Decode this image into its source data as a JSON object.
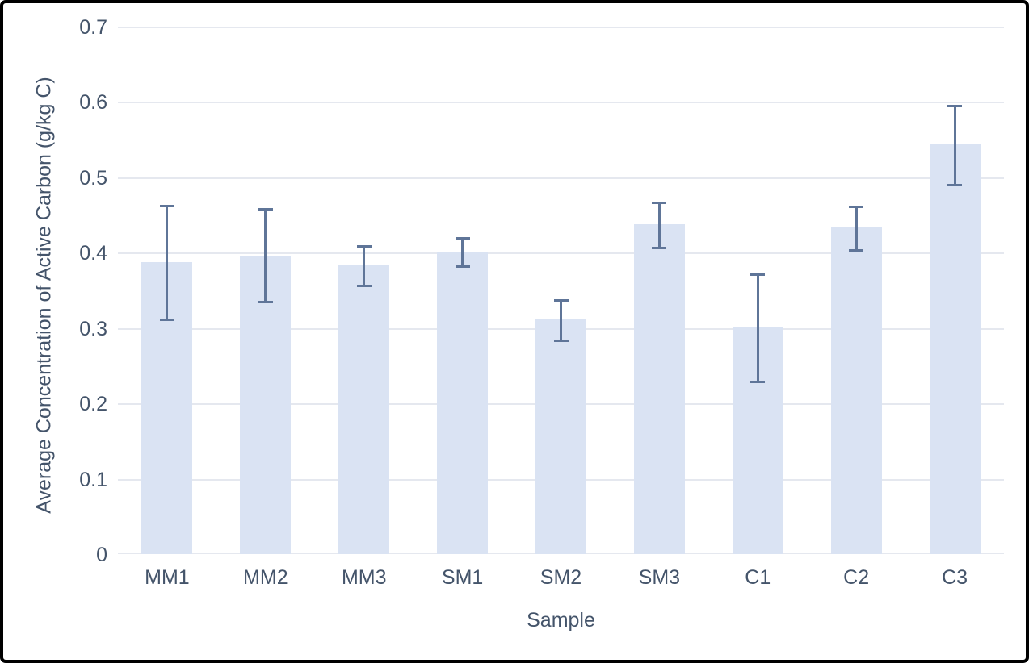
{
  "chart_data": {
    "type": "bar",
    "title": "",
    "categories": [
      "MM1",
      "MM2",
      "MM3",
      "SM1",
      "SM2",
      "SM3",
      "C1",
      "C2",
      "C3"
    ],
    "values": [
      0.388,
      0.396,
      0.383,
      0.401,
      0.312,
      0.438,
      0.301,
      0.433,
      0.544
    ],
    "error_bars": {
      "upper_absolute": [
        0.462,
        0.458,
        0.408,
        0.419,
        0.337,
        0.466,
        0.371,
        0.461,
        0.595
      ],
      "lower_absolute": [
        0.311,
        0.335,
        0.356,
        0.382,
        0.283,
        0.406,
        0.229,
        0.403,
        0.49
      ]
    },
    "xlabel": "Sample",
    "ylabel": "Average Concentration of Active Carbon (g/kg C)",
    "ylim": [
      0,
      0.7
    ],
    "ytick_labels": [
      "0",
      "0.1",
      "0.2",
      "0.3",
      "0.4",
      "0.5",
      "0.6",
      "0.7"
    ],
    "grid": true,
    "legend_position": "none",
    "colors": {
      "bar_fill": "#DAE3F3",
      "error_bar": "#5F7598",
      "axis_text": "#44546A",
      "gridline": "#E5E8EF",
      "frame_border": "#000000",
      "background": "#FFFFFF"
    }
  }
}
